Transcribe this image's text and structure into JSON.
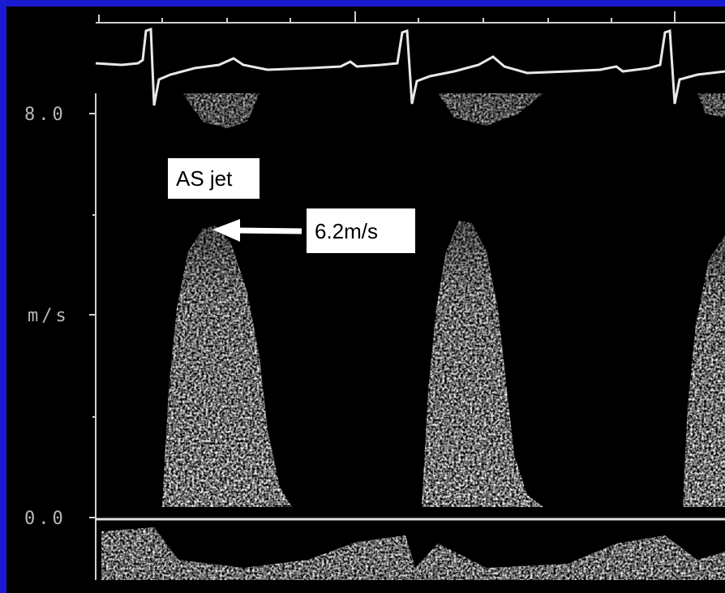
{
  "axis": {
    "top_label": "8.0",
    "unit_label": "m/s",
    "bottom_label": "0.0"
  },
  "annotations": {
    "jet_label": "AS jet",
    "peak_label": "6.2m/s"
  }
}
